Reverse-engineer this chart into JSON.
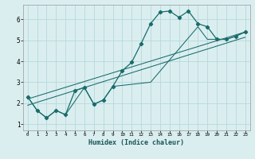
{
  "xlabel": "Humidex (Indice chaleur)",
  "background_color": "#daeef0",
  "grid_color": "#b8d8da",
  "line_color": "#1a6b6b",
  "xlim": [
    -0.5,
    23.5
  ],
  "ylim": [
    0.7,
    6.7
  ],
  "xticks": [
    0,
    1,
    2,
    3,
    4,
    5,
    6,
    7,
    8,
    9,
    10,
    11,
    12,
    13,
    14,
    15,
    16,
    17,
    18,
    19,
    20,
    21,
    22,
    23
  ],
  "yticks": [
    1,
    2,
    3,
    4,
    5,
    6
  ],
  "series1_x": [
    0,
    1,
    2,
    3,
    4,
    5,
    6,
    7,
    8,
    9,
    10,
    11,
    12,
    13,
    14,
    15,
    16,
    17,
    18,
    19,
    20,
    21,
    22,
    23
  ],
  "series1_y": [
    2.3,
    1.65,
    1.3,
    1.65,
    1.45,
    2.6,
    2.75,
    1.95,
    2.15,
    2.8,
    3.55,
    3.95,
    4.85,
    5.8,
    6.35,
    6.4,
    6.1,
    6.4,
    5.8,
    5.65,
    5.05,
    5.05,
    5.2,
    5.4
  ],
  "series2_x": [
    0,
    1,
    2,
    3,
    4,
    6,
    7,
    8,
    9,
    13,
    18,
    19,
    20,
    21,
    22,
    23
  ],
  "series2_y": [
    2.3,
    1.65,
    1.3,
    1.65,
    1.45,
    2.75,
    1.95,
    2.15,
    2.8,
    3.0,
    5.65,
    5.05,
    5.05,
    5.05,
    5.2,
    5.4
  ],
  "series3_x": [
    0,
    23
  ],
  "series3_y": [
    2.2,
    5.4
  ],
  "series4_x": [
    0,
    23
  ],
  "series4_y": [
    1.9,
    5.15
  ]
}
